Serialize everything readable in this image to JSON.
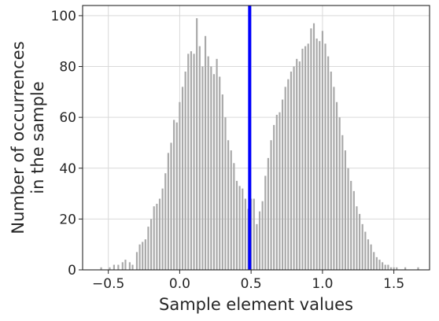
{
  "chart_data": {
    "type": "bar",
    "xlabel": "Sample element values",
    "ylabel_lines": [
      "Number of occurrences",
      "in the sample"
    ],
    "xlim": [
      -0.68,
      1.75
    ],
    "ylim": [
      0,
      104
    ],
    "xticks": [
      -0.5,
      0.0,
      0.5,
      1.0,
      1.5
    ],
    "xtick_labels": [
      "−0.5",
      "0.0",
      "0.5",
      "1.0",
      "1.5"
    ],
    "yticks": [
      0,
      20,
      40,
      60,
      80,
      100
    ],
    "ytick_labels": [
      "0",
      "20",
      "40",
      "60",
      "80",
      "100"
    ],
    "grid": true,
    "bar_color": "#a9a9a9",
    "vline_color": "#0000ff",
    "vline_x": 0.49,
    "bar_width": 0.012,
    "bins": [
      [
        -0.55,
        1
      ],
      [
        -0.52,
        0
      ],
      [
        -0.49,
        1
      ],
      [
        -0.46,
        2
      ],
      [
        -0.43,
        2
      ],
      [
        -0.4,
        3
      ],
      [
        -0.38,
        4
      ],
      [
        -0.35,
        3
      ],
      [
        -0.33,
        2
      ],
      [
        -0.3,
        7
      ],
      [
        -0.28,
        10
      ],
      [
        -0.26,
        11
      ],
      [
        -0.24,
        12
      ],
      [
        -0.22,
        17
      ],
      [
        -0.2,
        20
      ],
      [
        -0.18,
        25
      ],
      [
        -0.16,
        26
      ],
      [
        -0.14,
        28
      ],
      [
        -0.12,
        32
      ],
      [
        -0.1,
        38
      ],
      [
        -0.08,
        46
      ],
      [
        -0.06,
        50
      ],
      [
        -0.04,
        59
      ],
      [
        -0.02,
        58
      ],
      [
        0.0,
        66
      ],
      [
        0.02,
        72
      ],
      [
        0.04,
        78
      ],
      [
        0.06,
        85
      ],
      [
        0.08,
        86
      ],
      [
        0.1,
        85
      ],
      [
        0.12,
        99
      ],
      [
        0.14,
        88
      ],
      [
        0.16,
        80
      ],
      [
        0.18,
        92
      ],
      [
        0.2,
        84
      ],
      [
        0.22,
        80
      ],
      [
        0.24,
        77
      ],
      [
        0.26,
        83
      ],
      [
        0.28,
        76
      ],
      [
        0.3,
        69
      ],
      [
        0.32,
        60
      ],
      [
        0.34,
        51
      ],
      [
        0.36,
        47
      ],
      [
        0.38,
        42
      ],
      [
        0.4,
        35
      ],
      [
        0.42,
        33
      ],
      [
        0.44,
        32
      ],
      [
        0.46,
        28
      ],
      [
        0.48,
        24
      ],
      [
        0.5,
        28
      ],
      [
        0.52,
        28
      ],
      [
        0.54,
        18
      ],
      [
        0.56,
        23
      ],
      [
        0.58,
        27
      ],
      [
        0.6,
        37
      ],
      [
        0.62,
        44
      ],
      [
        0.64,
        51
      ],
      [
        0.66,
        57
      ],
      [
        0.68,
        61
      ],
      [
        0.7,
        62
      ],
      [
        0.72,
        67
      ],
      [
        0.74,
        72
      ],
      [
        0.76,
        75
      ],
      [
        0.78,
        78
      ],
      [
        0.8,
        80
      ],
      [
        0.82,
        83
      ],
      [
        0.84,
        82
      ],
      [
        0.86,
        87
      ],
      [
        0.88,
        88
      ],
      [
        0.9,
        89
      ],
      [
        0.92,
        95
      ],
      [
        0.94,
        97
      ],
      [
        0.96,
        91
      ],
      [
        0.98,
        90
      ],
      [
        1.0,
        94
      ],
      [
        1.02,
        89
      ],
      [
        1.04,
        84
      ],
      [
        1.06,
        78
      ],
      [
        1.08,
        72
      ],
      [
        1.1,
        66
      ],
      [
        1.12,
        60
      ],
      [
        1.14,
        53
      ],
      [
        1.16,
        47
      ],
      [
        1.18,
        40
      ],
      [
        1.2,
        35
      ],
      [
        1.22,
        31
      ],
      [
        1.24,
        25
      ],
      [
        1.26,
        22
      ],
      [
        1.28,
        18
      ],
      [
        1.3,
        15
      ],
      [
        1.32,
        12
      ],
      [
        1.34,
        10
      ],
      [
        1.36,
        7
      ],
      [
        1.38,
        5
      ],
      [
        1.4,
        4
      ],
      [
        1.42,
        3
      ],
      [
        1.44,
        2
      ],
      [
        1.46,
        2
      ],
      [
        1.48,
        1
      ],
      [
        1.5,
        1
      ],
      [
        1.52,
        1
      ],
      [
        1.58,
        1
      ],
      [
        1.67,
        1
      ]
    ]
  }
}
